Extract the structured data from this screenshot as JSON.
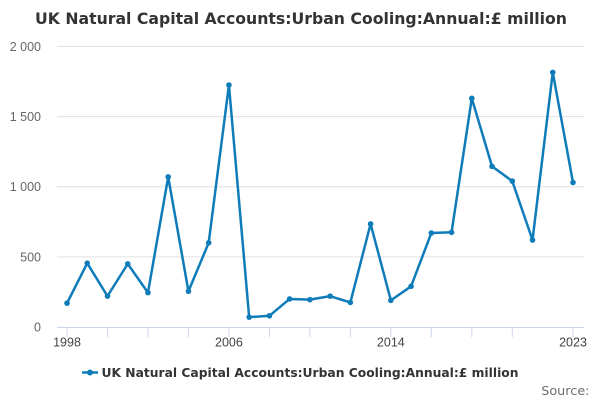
{
  "title": "UK Natural Capital Accounts:Urban Cooling:Annual:£ million",
  "legend": {
    "label": "UK Natural Capital Accounts:Urban Cooling:Annual:£ million"
  },
  "source_label": "Source:",
  "colors": {
    "line": "#0f7cba",
    "grid": "#e0e0e0",
    "axis": "#ccd6eb",
    "x_labels": "#444444",
    "y_labels": "#666666",
    "title": "#333333",
    "background": "#ffffff"
  },
  "chart_data": {
    "type": "line",
    "title": "UK Natural Capital Accounts:Urban Cooling:Annual:£ million",
    "xlabel": "",
    "ylabel": "",
    "x": [
      1998,
      1999,
      2000,
      2001,
      2002,
      2003,
      2004,
      2005,
      2006,
      2007,
      2008,
      2009,
      2010,
      2011,
      2012,
      2013,
      2014,
      2015,
      2016,
      2017,
      2018,
      2019,
      2020,
      2021,
      2022,
      2023
    ],
    "series": [
      {
        "name": "UK Natural Capital Accounts:Urban Cooling:Annual:£ million",
        "values": [
          170,
          455,
          220,
          450,
          245,
          1070,
          255,
          600,
          1725,
          70,
          80,
          200,
          195,
          220,
          175,
          735,
          190,
          290,
          670,
          675,
          1630,
          1145,
          1040,
          620,
          1815,
          1030
        ]
      }
    ],
    "xlim": [
      1997.5,
      2023.55
    ],
    "ylim": [
      0,
      2000
    ],
    "y_ticks": [
      0,
      500,
      1000,
      1500,
      2000
    ],
    "y_tick_labels": [
      "0",
      "500",
      "1 000",
      "1 500",
      "2 000"
    ],
    "x_tick_years": [
      1998,
      2000,
      2002,
      2004,
      2006,
      2008,
      2010,
      2012,
      2014,
      2016,
      2018,
      2020,
      2023
    ],
    "x_label_years": [
      1998,
      2006,
      2014,
      2023
    ],
    "grid": true,
    "legend_position": "bottom"
  }
}
